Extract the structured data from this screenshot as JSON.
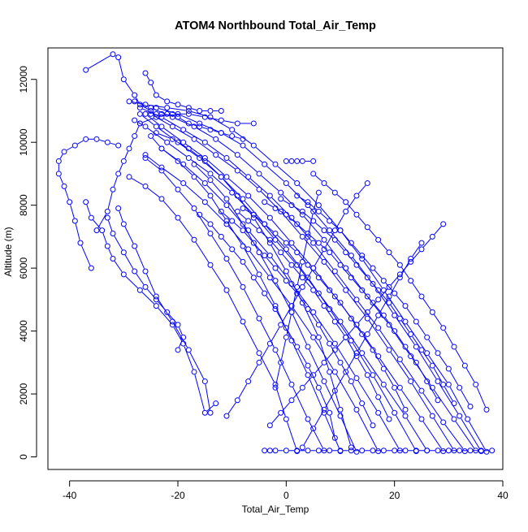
{
  "chart_data": {
    "type": "line",
    "title": "ATOM4 Northbound Total_Air_Temp",
    "xlabel": "Total_Air_Temp",
    "ylabel": "Altitude (m)",
    "xlim": [
      -44,
      40
    ],
    "ylim": [
      -400,
      13000
    ],
    "xticks": [
      -40,
      -20,
      0,
      20,
      40
    ],
    "yticks": [
      0,
      2000,
      4000,
      6000,
      8000,
      10000,
      12000
    ],
    "xtick_labels": [
      "-40",
      "-20",
      "0",
      "20",
      "40"
    ],
    "ytick_labels": [
      "0",
      "2000",
      "4000",
      "6000",
      "8000",
      "10000",
      "12000"
    ],
    "line_color": "#0000ff",
    "marker": "open-circle",
    "grid": false,
    "legend": "none",
    "series": [
      {
        "x": [
          37,
          33.5,
          30,
          26,
          22,
          18,
          14,
          10,
          6,
          2,
          -2,
          -6,
          -10,
          -14,
          -18,
          -22,
          -26,
          -29
        ],
        "y": [
          160,
          1200,
          2300,
          3300,
          4300,
          5300,
          6300,
          7200,
          8000,
          8700,
          9300,
          9900,
          10400,
          10800,
          11000,
          11100,
          11200,
          11300
        ]
      },
      {
        "x": [
          36,
          32,
          28,
          24,
          20,
          16,
          12,
          8,
          4,
          0,
          -4,
          -8,
          -12,
          -16,
          -20,
          -24
        ],
        "y": [
          180,
          1300,
          2400,
          3500,
          4500,
          5500,
          6400,
          7200,
          8000,
          8700,
          9300,
          9900,
          10300,
          10600,
          10900,
          11100
        ]
      },
      {
        "x": [
          35,
          31,
          27,
          23,
          19,
          15,
          11,
          7,
          3,
          -1,
          -5,
          -9,
          -13,
          -17,
          -21,
          -25,
          -28
        ],
        "y": [
          200,
          1200,
          2200,
          3200,
          4200,
          5100,
          6000,
          6900,
          7700,
          8400,
          9000,
          9600,
          10100,
          10500,
          10800,
          11100,
          11300
        ]
      },
      {
        "x": [
          33,
          29,
          25,
          21,
          17,
          13,
          9,
          5,
          1,
          -3,
          -7,
          -11,
          -15,
          -19,
          -23,
          -27
        ],
        "y": [
          180,
          1100,
          2100,
          3100,
          4100,
          5000,
          5900,
          6800,
          7600,
          8300,
          8900,
          9500,
          10000,
          10400,
          10800,
          11100
        ]
      },
      {
        "x": [
          31,
          27,
          23,
          19,
          15,
          11,
          7,
          3,
          -1,
          -5,
          -9,
          -13,
          -17,
          -21,
          -25
        ],
        "y": [
          200,
          1300,
          2400,
          3400,
          4400,
          5300,
          6200,
          7000,
          7800,
          8500,
          9100,
          9600,
          10100,
          10500,
          10900
        ]
      },
      {
        "x": [
          29,
          25,
          21,
          17,
          13,
          9,
          5,
          1,
          -3,
          -7,
          -11,
          -15,
          -19,
          -23,
          -26
        ],
        "y": [
          180,
          1200,
          2200,
          3200,
          4200,
          5100,
          6000,
          6800,
          7600,
          8300,
          8900,
          9500,
          10000,
          10500,
          10900
        ]
      },
      {
        "x": [
          26,
          22,
          18,
          14,
          10,
          6,
          2,
          -2,
          -6,
          -10,
          -14,
          -18,
          -22,
          -26,
          -28
        ],
        "y": [
          200,
          1300,
          2300,
          3300,
          4300,
          5200,
          6100,
          6900,
          7700,
          8400,
          9000,
          9500,
          10000,
          10500,
          10700
        ]
      },
      {
        "x": [
          24,
          20,
          16,
          12,
          8,
          4,
          0,
          -4,
          -8,
          -12,
          -16,
          -20,
          -24,
          -27
        ],
        "y": [
          180,
          1400,
          2600,
          3700,
          4700,
          5700,
          6600,
          7400,
          8200,
          8900,
          9500,
          10000,
          10500,
          10900
        ]
      },
      {
        "x": [
          21,
          17,
          13,
          9,
          5,
          1,
          -3,
          -7,
          -11,
          -15,
          -19,
          -23,
          -25
        ],
        "y": [
          200,
          1400,
          2500,
          3600,
          4600,
          5500,
          6400,
          7200,
          8000,
          8700,
          9300,
          9800,
          10200
        ]
      },
      {
        "x": [
          17,
          13,
          9,
          5,
          1,
          -3,
          -7,
          -11,
          -15,
          -19,
          -23,
          -26
        ],
        "y": [
          180,
          1500,
          2700,
          3800,
          4800,
          5700,
          6600,
          7400,
          8100,
          8700,
          9200,
          9600
        ]
      },
      {
        "x": [
          13,
          10,
          7,
          4,
          1,
          -2,
          -5,
          -8,
          -11,
          -14,
          -17
        ],
        "y": [
          160,
          1300,
          2400,
          3500,
          4600,
          5600,
          6500,
          7400,
          8200,
          8800,
          9300
        ]
      },
      {
        "x": [
          10,
          7,
          4,
          1,
          -2,
          -5,
          -8,
          -11,
          -14,
          -17,
          -20,
          -23
        ],
        "y": [
          180,
          1400,
          2600,
          3700,
          4800,
          5800,
          6700,
          7500,
          8300,
          8900,
          9400,
          9800
        ]
      },
      {
        "x": [
          7,
          4,
          1,
          -2,
          -5,
          -8,
          -11,
          -14,
          -17,
          -20,
          -23,
          -26
        ],
        "y": [
          200,
          1200,
          2300,
          3400,
          4400,
          5400,
          6300,
          7100,
          7900,
          8500,
          9100,
          9500
        ]
      },
      {
        "x": [
          2,
          0,
          -2,
          -5,
          -8,
          -11,
          -14,
          -17,
          -20,
          -23,
          -26,
          -29
        ],
        "y": [
          180,
          1200,
          2300,
          3300,
          4300,
          5300,
          6100,
          6900,
          7600,
          8200,
          8600,
          8900
        ]
      },
      {
        "x": [
          12,
          10,
          8,
          6,
          3,
          0,
          -3,
          -6,
          -9,
          -12,
          -15,
          -18,
          -21,
          -24
        ],
        "y": [
          300,
          1500,
          2700,
          3800,
          4900,
          5900,
          6800,
          7600,
          8300,
          8900,
          9400,
          9800,
          10100,
          10300
        ]
      },
      {
        "x": [
          -14,
          -15,
          -18,
          -21,
          -24,
          -26,
          -28,
          -30,
          -31
        ],
        "y": [
          1400,
          2400,
          3400,
          4300,
          5100,
          5900,
          6700,
          7400,
          7900
        ]
      },
      {
        "x": [
          -13,
          -15,
          -17,
          -19,
          -21,
          -24,
          -27,
          -30,
          -32,
          -33,
          -34,
          -36,
          -37
        ],
        "y": [
          1700,
          1400,
          2700,
          3600,
          4200,
          4800,
          5300,
          5800,
          6300,
          6700,
          7200,
          7600,
          8100
        ]
      },
      {
        "x": [
          -20,
          -19,
          -20,
          -22,
          -24,
          -26,
          -28,
          -30,
          -32,
          -33
        ],
        "y": [
          3400,
          3800,
          4200,
          4600,
          5000,
          5400,
          5900,
          6500,
          7100,
          7600
        ]
      },
      {
        "x": [
          -36,
          -38,
          -39,
          -40,
          -41,
          -42,
          -42,
          -41,
          -39,
          -37,
          -35,
          -33,
          -31
        ],
        "y": [
          6000,
          6800,
          7500,
          8100,
          8600,
          9000,
          9400,
          9700,
          9900,
          10100,
          10100,
          10000,
          9900
        ]
      },
      {
        "x": [
          -35,
          -33,
          -32,
          -31,
          -30,
          -29,
          -28,
          -27
        ],
        "y": [
          7200,
          7800,
          8500,
          9000,
          9400,
          9800,
          10200,
          10600
        ]
      },
      {
        "x": [
          -37,
          -32,
          -31,
          -30,
          -28,
          -27,
          -25,
          -24,
          -23
        ],
        "y": [
          12300,
          12800,
          12700,
          12000,
          11500,
          11200,
          11000,
          10900,
          10900
        ]
      },
      {
        "x": [
          -26,
          -25,
          -24,
          -22,
          -20,
          -18,
          -16,
          -14,
          -12
        ],
        "y": [
          12200,
          11900,
          11500,
          11300,
          11200,
          11100,
          11000,
          11000,
          11000
        ]
      },
      {
        "x": [
          -27,
          -24,
          -21,
          -18,
          -15,
          -12,
          -9,
          -6
        ],
        "y": [
          10600,
          10800,
          10900,
          10900,
          10800,
          10700,
          10600,
          10600
        ]
      },
      {
        "x": [
          -22,
          -20,
          -18,
          -16,
          -14,
          -12,
          -10,
          -8
        ],
        "y": [
          10900,
          10800,
          10600,
          10500,
          10400,
          10300,
          10200,
          10100
        ]
      },
      {
        "x": [
          5,
          3,
          2,
          1,
          0
        ],
        "y": [
          9400,
          9400,
          9400,
          9400,
          9400
        ]
      },
      {
        "x": [
          37,
          35,
          33,
          31,
          29,
          27,
          25,
          23,
          21,
          19,
          17,
          15,
          13,
          11,
          9,
          7,
          5
        ],
        "y": [
          1500,
          2300,
          2900,
          3500,
          4100,
          4600,
          5100,
          5600,
          6100,
          6500,
          6900,
          7300,
          7700,
          8100,
          8400,
          8700,
          9000
        ]
      },
      {
        "x": [
          34,
          32,
          30,
          28,
          26,
          24,
          22,
          20,
          18,
          16,
          14,
          12,
          10,
          8,
          6,
          4,
          2
        ],
        "y": [
          1600,
          2200,
          2800,
          3300,
          3800,
          4300,
          4800,
          5200,
          5600,
          6000,
          6400,
          6800,
          7200,
          7500,
          7800,
          8100,
          8300
        ]
      },
      {
        "x": [
          31,
          29,
          27,
          25,
          23,
          21,
          19,
          17,
          15,
          13,
          11,
          9,
          7,
          5,
          3,
          1,
          -1
        ],
        "y": [
          1700,
          2300,
          2900,
          3400,
          3900,
          4400,
          4900,
          5300,
          5700,
          6100,
          6500,
          6900,
          7200,
          7500,
          7800,
          8000,
          8200
        ]
      },
      {
        "x": [
          28,
          26,
          24,
          22,
          20,
          18,
          16,
          14,
          12,
          10,
          8,
          6,
          4,
          2,
          0,
          -2,
          -4
        ],
        "y": [
          1800,
          2400,
          3000,
          3500,
          4000,
          4500,
          4900,
          5300,
          5700,
          6100,
          6500,
          6800,
          7100,
          7400,
          7700,
          7900,
          8100
        ]
      },
      {
        "x": [
          22,
          20,
          18,
          16,
          14,
          12,
          10,
          8,
          6,
          4,
          2,
          0,
          -2,
          -4,
          -6,
          -8
        ],
        "y": [
          1500,
          2200,
          2800,
          3400,
          3900,
          4400,
          4900,
          5300,
          5700,
          6100,
          6500,
          6800,
          7100,
          7400,
          7700,
          7900
        ]
      },
      {
        "x": [
          19,
          17,
          15,
          13,
          11,
          9,
          7,
          5,
          3,
          1,
          -1,
          -3,
          -5,
          -7,
          -9
        ],
        "y": [
          1200,
          1900,
          2600,
          3200,
          3800,
          4300,
          4800,
          5300,
          5700,
          6100,
          6500,
          6900,
          7200,
          7500,
          7800
        ]
      },
      {
        "x": [
          16,
          14,
          12,
          10,
          8,
          6,
          4,
          2,
          0,
          -2,
          -4,
          -6,
          -8,
          -10,
          -12
        ],
        "y": [
          1000,
          1700,
          2400,
          3000,
          3600,
          4200,
          4700,
          5200,
          5600,
          6000,
          6400,
          6800,
          7200,
          7500,
          7800
        ]
      },
      {
        "x": [
          9,
          8,
          6,
          4,
          2,
          0,
          -2,
          -4,
          -6,
          -8,
          -10,
          -12,
          -14,
          -16
        ],
        "y": [
          600,
          1400,
          2200,
          2900,
          3500,
          4100,
          4700,
          5200,
          5700,
          6200,
          6600,
          7000,
          7400,
          7700
        ]
      },
      {
        "x": [
          -4,
          -3,
          -2,
          0,
          2,
          4,
          6,
          8,
          10,
          12,
          14,
          16,
          18,
          20,
          22,
          24,
          26,
          28,
          30,
          32,
          34,
          36,
          38
        ],
        "y": [
          200,
          200,
          200,
          200,
          200,
          200,
          200,
          200,
          200,
          200,
          200,
          200,
          200,
          200,
          200,
          200,
          200,
          200,
          200,
          200,
          200,
          200,
          200
        ]
      },
      {
        "x": [
          -3,
          -1,
          1,
          3,
          5,
          7,
          9,
          11,
          13,
          15,
          17,
          19,
          21,
          23,
          25,
          27,
          29
        ],
        "y": [
          1000,
          1400,
          1800,
          2200,
          2600,
          3000,
          3400,
          3800,
          4200,
          4600,
          5000,
          5400,
          5800,
          6200,
          6600,
          7000,
          7400
        ]
      },
      {
        "x": [
          -2,
          -1,
          0,
          1,
          2,
          3,
          4,
          5,
          6
        ],
        "y": [
          2200,
          3000,
          3800,
          4600,
          5400,
          6200,
          7000,
          7800,
          8400
        ]
      },
      {
        "x": [
          -11,
          -9,
          -7,
          -5,
          -3,
          -1,
          1,
          3,
          5,
          7,
          9,
          11,
          13,
          15
        ],
        "y": [
          1300,
          1800,
          2400,
          3000,
          3600,
          4200,
          4800,
          5400,
          6000,
          6600,
          7200,
          7800,
          8300,
          8700
        ]
      },
      {
        "x": [
          3,
          5,
          7,
          9,
          11,
          13,
          15,
          17,
          19,
          21,
          23,
          25
        ],
        "y": [
          300,
          900,
          1500,
          2100,
          2700,
          3300,
          3900,
          4500,
          5100,
          5700,
          6300,
          6800
        ]
      }
    ]
  }
}
